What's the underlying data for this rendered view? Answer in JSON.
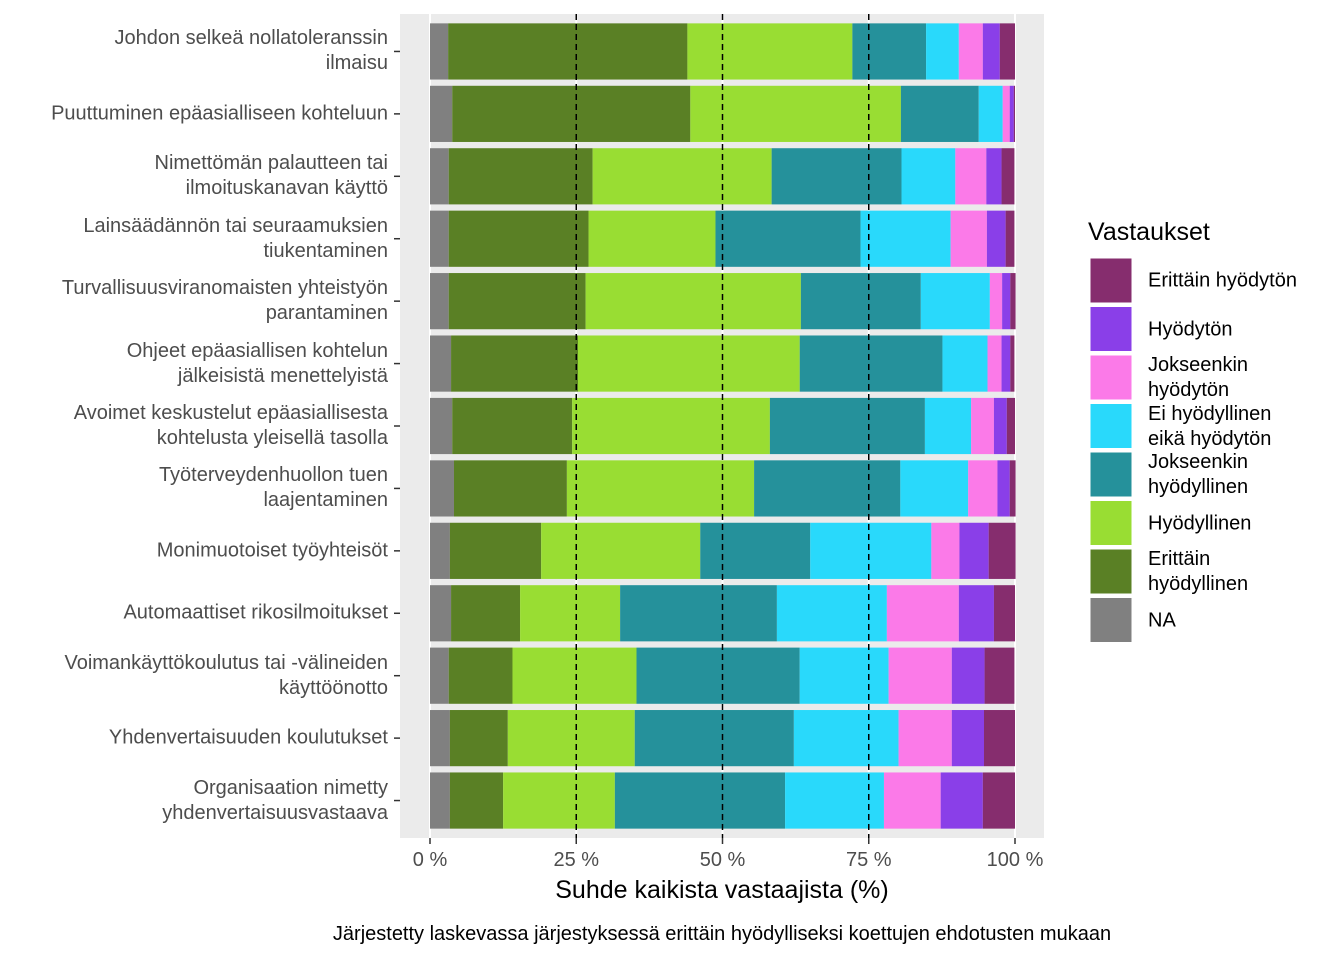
{
  "chart_data": {
    "type": "stacked_barh",
    "x_label": "Suhde kaikista vastaajista (%)",
    "caption": "Järjestetty laskevassa järjestyksessä erittäin hyödylliseksi koettujen ehdotusten mukaan",
    "legend_title": "Vastaukset",
    "legend_position": "right",
    "grid": true,
    "xlim": [
      0,
      100
    ],
    "xticks": [
      {
        "value": 0,
        "label": "0 %"
      },
      {
        "value": 25,
        "label": "25 %"
      },
      {
        "value": 50,
        "label": "50 %"
      },
      {
        "value": 75,
        "label": "75 %"
      },
      {
        "value": 100,
        "label": "100 %"
      }
    ],
    "reference_lines": [
      25,
      50,
      75
    ],
    "categories": [
      "Johdon selkeä nollatoleranssin\nilmaisu",
      "Puuttuminen epäasialliseen kohteluun",
      "Nimettömän palautteen tai\nilmoituskanavan käyttö",
      "Lainsäädännön tai seuraamuksien\ntiukentaminen",
      "Turvallisuusviranomaisten yhteistyön\nparantaminen",
      "Ohjeet epäasiallisen kohtelun\njälkeisistä menettelyistä",
      "Avoimet keskustelut epäasiallisesta\nkohtelusta yleisellä tasolla",
      "Työterveydenhuollon tuen\nlaajentaminen",
      "Monimuotoiset työyhteisöt",
      "Automaattiset rikosilmoitukset",
      "Voimankäyttökoulutus tai -välineiden\nkäyttöönotto",
      "Yhdenvertaisuuden koulutukset",
      "Organisaation nimetty\nyhdenvertaisuusvastaava"
    ],
    "series": [
      {
        "name": "NA",
        "color": "#808080",
        "values": [
          3.1,
          3.8,
          3.2,
          3.2,
          3.2,
          3.6,
          3.8,
          4.1,
          3.4,
          3.6,
          3.2,
          3.4,
          3.4
        ]
      },
      {
        "name": "Erittäin\nhyödyllinen",
        "color": "#5a8025",
        "values": [
          40.9,
          40.7,
          24.6,
          23.9,
          23.4,
          21.7,
          20.5,
          19.3,
          15.6,
          11.8,
          10.9,
          9.9,
          9.1
        ]
      },
      {
        "name": "Hyödyllinen",
        "color": "#99dd33",
        "values": [
          28.2,
          36.0,
          30.6,
          21.7,
          36.8,
          37.9,
          33.8,
          32.0,
          27.2,
          17.1,
          21.2,
          21.7,
          19.1
        ]
      },
      {
        "name": "Jokseenkin\nhyödyllinen",
        "color": "#25919b",
        "values": [
          12.6,
          13.3,
          22.2,
          24.8,
          20.5,
          24.4,
          26.5,
          25.0,
          18.8,
          26.8,
          27.9,
          27.2,
          29.1
        ]
      },
      {
        "name": "Ei hyödyllinen\neikä hyödytön",
        "color": "#29d9fb",
        "values": [
          5.6,
          4.1,
          9.2,
          15.4,
          11.8,
          7.7,
          7.9,
          11.6,
          20.7,
          18.8,
          15.2,
          17.9,
          16.9
        ]
      },
      {
        "name": "Jokseenkin\nhyödytön",
        "color": "#fb7ae8",
        "values": [
          4.1,
          1.2,
          5.3,
          6.2,
          2.1,
          2.4,
          3.9,
          5.0,
          4.8,
          12.3,
          10.8,
          9.1,
          9.7
        ]
      },
      {
        "name": "Hyödytön",
        "color": "#8a3fe8",
        "values": [
          2.9,
          0.7,
          2.6,
          3.2,
          1.4,
          1.5,
          2.2,
          2.1,
          5.0,
          6.0,
          5.6,
          5.5,
          7.2
        ]
      },
      {
        "name": "Erittäin hyödytön",
        "color": "#862d6e",
        "values": [
          2.6,
          0.2,
          2.2,
          1.5,
          0.9,
          0.7,
          1.4,
          1.0,
          4.6,
          3.6,
          5.1,
          5.3,
          5.5
        ]
      }
    ]
  }
}
